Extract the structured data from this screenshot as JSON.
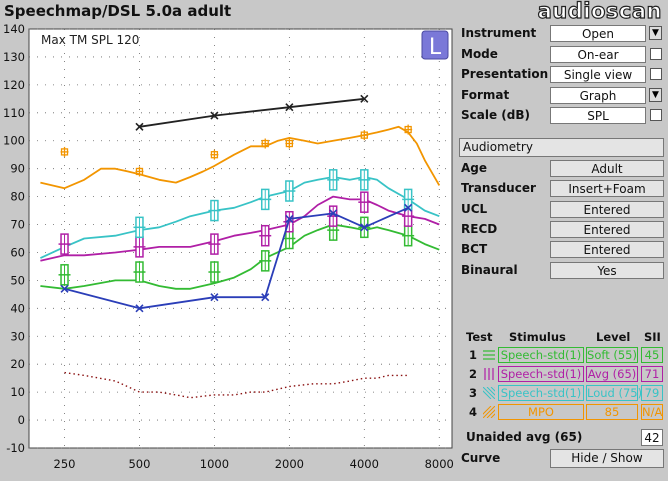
{
  "window": {
    "title": "Speechmap/DSL 5.0a adult",
    "logo": "audioscan"
  },
  "chart_data": {
    "type": "line",
    "badge": "L",
    "annotation": "Max TM SPL 120",
    "xscale": "log",
    "xlim": [
      180,
      9000
    ],
    "ylim": [
      -10,
      140
    ],
    "grid": "dotted",
    "x_ticks": [
      250,
      500,
      1000,
      2000,
      4000,
      8000
    ],
    "x_ticklabels": [
      "250",
      "500",
      "1000",
      "2000",
      "4000",
      "8000"
    ],
    "y_ticks": [
      -10,
      0,
      10,
      20,
      30,
      40,
      50,
      60,
      70,
      80,
      90,
      100,
      110,
      120,
      130,
      140
    ],
    "colors": {
      "green": "#33bb33",
      "magenta": "#b01fa6",
      "cyan": "#38c3c6",
      "orange": "#f29500",
      "blue": "#2b3eb8",
      "black": "#222222",
      "threshold": "#8a1010"
    },
    "series": [
      {
        "name": "UCL",
        "color": "#222222",
        "style": "x-line",
        "x": [
          500,
          1000,
          2000,
          4000
        ],
        "y": [
          105,
          109,
          112,
          115
        ]
      },
      {
        "name": "MPO",
        "color": "#f29500",
        "style": "line",
        "x": [
          200,
          250,
          300,
          350,
          400,
          450,
          500,
          600,
          700,
          800,
          900,
          1000,
          1200,
          1400,
          1600,
          1800,
          2000,
          2300,
          2600,
          3000,
          3500,
          4000,
          4500,
          5000,
          5500,
          6000,
          6500,
          7000,
          8000
        ],
        "y": [
          85,
          83,
          86,
          90,
          90,
          89,
          88,
          86,
          85,
          87,
          89,
          91,
          95,
          98,
          98,
          100,
          101,
          100,
          99,
          100,
          101,
          102,
          103,
          104,
          105,
          103,
          99,
          93,
          84
        ]
      },
      {
        "name": "MPO targets",
        "color": "#f29500",
        "style": "plus",
        "x": [
          250,
          500,
          1000,
          1600,
          2000,
          4000,
          6000
        ],
        "y": [
          96,
          89,
          95,
          99,
          99,
          102,
          104
        ]
      },
      {
        "name": "Speech-std(1) Loud (75)",
        "color": "#38c3c6",
        "style": "line",
        "x": [
          200,
          250,
          300,
          400,
          500,
          600,
          700,
          800,
          1000,
          1200,
          1400,
          1600,
          2000,
          2300,
          2600,
          3000,
          3500,
          4000,
          4500,
          5000,
          6000,
          7000,
          8000
        ],
        "y": [
          58,
          62,
          65,
          66,
          68,
          69,
          71,
          73,
          75,
          76,
          78,
          80,
          82,
          85,
          86,
          87,
          86,
          87,
          86,
          83,
          79,
          75,
          73
        ]
      },
      {
        "name": "Speech-std(1) Avg (65)",
        "color": "#b01fa6",
        "style": "line",
        "x": [
          200,
          250,
          300,
          400,
          500,
          600,
          700,
          800,
          1000,
          1200,
          1400,
          1600,
          2000,
          2300,
          2600,
          3000,
          3500,
          4000,
          4500,
          5000,
          6000,
          7000,
          8000
        ],
        "y": [
          57,
          59,
          59,
          60,
          61,
          62,
          62,
          62,
          64,
          66,
          67,
          68,
          70,
          73,
          77,
          80,
          79,
          79,
          77,
          75,
          73,
          72,
          70
        ]
      },
      {
        "name": "Speech-std(1) Soft (55)",
        "color": "#33bb33",
        "style": "line",
        "x": [
          200,
          250,
          300,
          400,
          500,
          600,
          700,
          800,
          1000,
          1200,
          1400,
          1600,
          2000,
          2300,
          2600,
          3000,
          3500,
          4000,
          4500,
          5000,
          6000,
          7000,
          8000
        ],
        "y": [
          48,
          47,
          48,
          50,
          50,
          48,
          47,
          47,
          49,
          51,
          54,
          58,
          62,
          66,
          68,
          70,
          69,
          68,
          69,
          68,
          66,
          63,
          61
        ]
      },
      {
        "name": "Soft targets",
        "color": "#33bb33",
        "style": "target",
        "x": [
          250,
          500,
          1000,
          1600,
          2000,
          3000,
          4000,
          6000
        ],
        "y": [
          52,
          53,
          53,
          57,
          65,
          68,
          69,
          66
        ]
      },
      {
        "name": "Avg targets",
        "color": "#b01fa6",
        "style": "target",
        "x": [
          250,
          500,
          1000,
          1600,
          2000,
          3000,
          4000,
          6000
        ],
        "y": [
          63,
          62,
          63,
          66,
          71,
          73,
          78,
          73
        ]
      },
      {
        "name": "Loud targets",
        "color": "#38c3c6",
        "style": "target",
        "x": [
          500,
          1000,
          1600,
          2000,
          3000,
          4000,
          6000
        ],
        "y": [
          69,
          75,
          79,
          82,
          86,
          86,
          79
        ]
      },
      {
        "name": "Threshold",
        "color": "#2b3eb8",
        "style": "x-line",
        "x": [
          250,
          500,
          1000,
          1600,
          2000,
          3000,
          4000,
          6000
        ],
        "y": [
          47,
          40,
          44,
          44,
          72,
          74,
          69,
          76
        ]
      },
      {
        "name": "Unaided avg (65)",
        "color": "#8a1010",
        "style": "dotted",
        "x": [
          250,
          300,
          400,
          500,
          600,
          700,
          800,
          1000,
          1200,
          1400,
          1600,
          2000,
          2500,
          3000,
          3500,
          4000,
          4500,
          5000,
          6000
        ],
        "y": [
          17,
          16,
          14,
          10,
          10,
          9,
          8,
          9,
          9,
          10,
          10,
          12,
          13,
          13,
          14,
          15,
          15,
          16,
          16
        ]
      }
    ]
  },
  "panel": {
    "settings": [
      {
        "label": "Instrument",
        "value": "Open",
        "control": "dropdown"
      },
      {
        "label": "Mode",
        "value": "On-ear",
        "control": "checkbox"
      },
      {
        "label": "Presentation",
        "value": "Single view",
        "control": "checkbox"
      },
      {
        "label": "Format",
        "value": "Graph",
        "control": "dropdown"
      },
      {
        "label": "Scale (dB)",
        "value": "SPL",
        "control": "checkbox"
      }
    ],
    "audiometry_button": "Audiometry",
    "audiometry": [
      {
        "label": "Age",
        "value": "Adult"
      },
      {
        "label": "Transducer",
        "value": "Insert+Foam"
      },
      {
        "label": "UCL",
        "value": "Entered"
      },
      {
        "label": "RECD",
        "value": "Entered"
      },
      {
        "label": "BCT",
        "value": "Entered"
      },
      {
        "label": "Binaural",
        "value": "Yes"
      }
    ],
    "test_table": {
      "headers": [
        "Test",
        "Stimulus",
        "Level",
        "SII"
      ],
      "rows": [
        {
          "test": "1",
          "stimulus": "Speech-std(1)",
          "level": "Soft (55)",
          "sii": "45",
          "color": "#33bb33"
        },
        {
          "test": "2",
          "stimulus": "Speech-std(1)",
          "level": "Avg (65)",
          "sii": "71",
          "color": "#b01fa6"
        },
        {
          "test": "3",
          "stimulus": "Speech-std(1)",
          "level": "Loud (75)",
          "sii": "79",
          "color": "#38c3c6"
        },
        {
          "test": "4",
          "stimulus": "MPO",
          "level": "85",
          "sii": "N/A",
          "color": "#f29500"
        }
      ]
    },
    "unaided": {
      "label": "Unaided avg (65)",
      "value": "42"
    },
    "curve": {
      "label": "Curve",
      "button": "Hide / Show"
    }
  }
}
